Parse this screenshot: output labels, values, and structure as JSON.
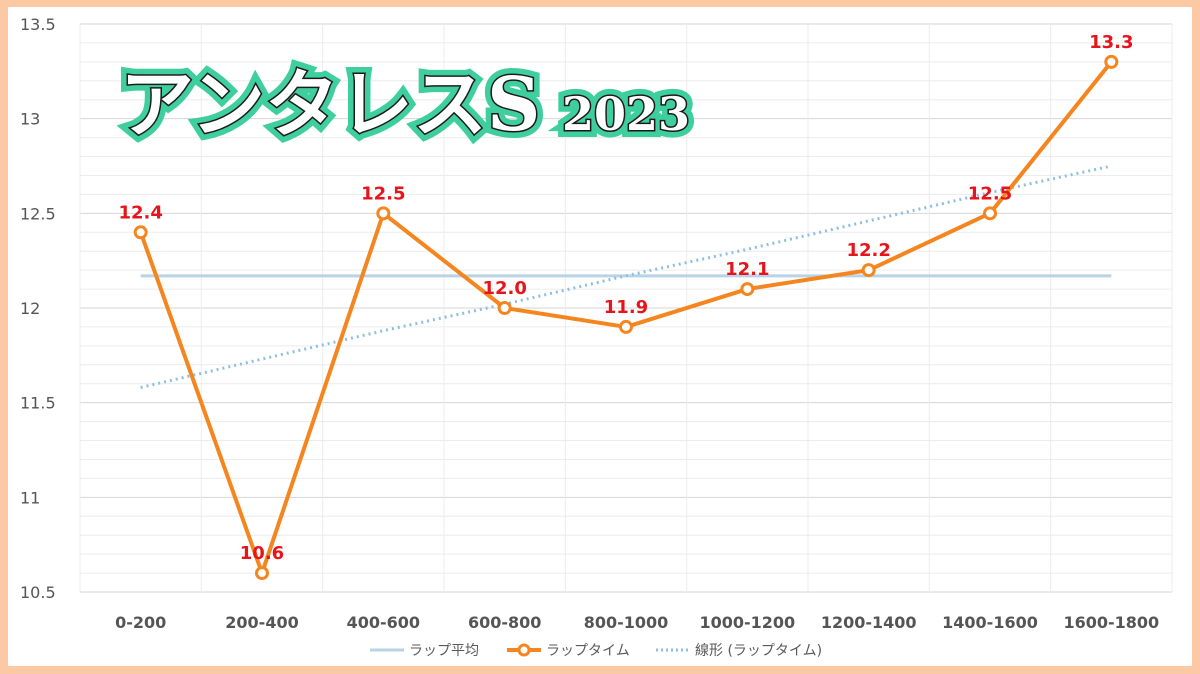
{
  "title": {
    "main": "アンタレスS",
    "year": "2023"
  },
  "colors": {
    "frame": "#fbc9a4",
    "lap_time": "#f5861f",
    "lap_average": "#b9d3e6",
    "trend": "#8fbfe0",
    "data_label": "#e8141b",
    "title_glow": "#3fcf9f"
  },
  "chart_data": {
    "type": "line",
    "categories": [
      "0-200",
      "200-400",
      "400-600",
      "600-800",
      "800-1000",
      "1000-1200",
      "1200-1400",
      "1400-1600",
      "1600-1800"
    ],
    "series": [
      {
        "name": "ラップタイム",
        "values": [
          12.4,
          10.6,
          12.5,
          12.0,
          11.9,
          12.1,
          12.2,
          12.5,
          13.3
        ],
        "data_labels": [
          "12.4",
          "10.6",
          "12.5",
          "12.0",
          "11.9",
          "12.1",
          "12.2",
          "12.5",
          "13.3"
        ]
      },
      {
        "name": "ラップ平均",
        "values": [
          12.17,
          12.17,
          12.17,
          12.17,
          12.17,
          12.17,
          12.17,
          12.17,
          12.17
        ]
      },
      {
        "name": "線形 (ラップタイム)",
        "values": [
          11.58,
          11.73,
          11.88,
          12.02,
          12.17,
          12.31,
          12.46,
          12.61,
          12.75
        ]
      }
    ],
    "y_ticks": [
      "13.5",
      "13",
      "12.5",
      "12",
      "11.5",
      "11",
      "10.5"
    ],
    "ylim": [
      10.5,
      13.5
    ],
    "grid": true,
    "legend_position": "bottom"
  }
}
